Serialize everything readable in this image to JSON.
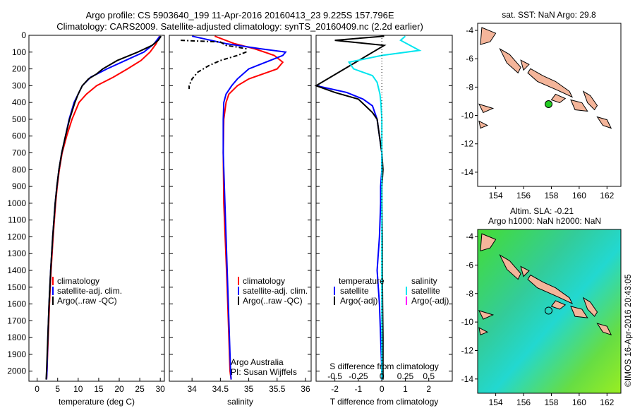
{
  "header": {
    "title_line1": "Argo profile: CS 5903640_199 11-Apr-2016 20160413_23 9.225S 157.796E",
    "title_line2": "Climatology: CARS2009. Satellite-adjusted climatology: synTS_20160409.nc (2.2d earlier)"
  },
  "colors": {
    "climatology": "#ff0000",
    "satellite": "#0000ff",
    "argo": "#000000",
    "satellite_salinity": "#00e5ee",
    "argo_salinity_adj": "#ff00ff",
    "land": "#f4b59a",
    "float_marker": "#22cc22"
  },
  "chart_data": [
    {
      "type": "line",
      "id": "temperature",
      "xlabel": "temperature (deg C)",
      "ylabel": "",
      "xlim": [
        -2,
        31
      ],
      "ylim": [
        2060,
        0
      ],
      "x_ticks": [
        0,
        5,
        10,
        15,
        20,
        25,
        30
      ],
      "y_ticks": [
        0,
        100,
        200,
        300,
        400,
        500,
        600,
        700,
        800,
        900,
        1000,
        1100,
        1200,
        1300,
        1400,
        1500,
        1600,
        1700,
        1800,
        1900,
        2000
      ],
      "legend": [
        "climatology",
        "satellite-adj. clim.",
        "Argo(..raw -QC)"
      ],
      "legend_position": "lower-center",
      "series": [
        {
          "name": "climatology",
          "depth": [
            5,
            50,
            100,
            150,
            200,
            250,
            300,
            350,
            400,
            500,
            600,
            700,
            800,
            900,
            1000,
            1200,
            1400,
            1600,
            1800,
            2000,
            2050
          ],
          "values": [
            29.8,
            29.0,
            27.5,
            25.3,
            22.0,
            18.5,
            14.5,
            12.0,
            10.2,
            8.5,
            7.2,
            6.1,
            5.4,
            4.9,
            4.5,
            3.9,
            3.4,
            3.0,
            2.7,
            2.4,
            2.3
          ]
        },
        {
          "name": "satellite-adj. clim.",
          "depth": [
            5,
            50,
            100,
            150,
            200,
            250,
            300,
            350,
            400,
            500,
            600,
            700,
            800,
            900,
            1000,
            1200,
            1400,
            1600,
            1800,
            2000,
            2050
          ],
          "values": [
            29.9,
            28.5,
            26.0,
            21.5,
            17.0,
            13.0,
            11.0,
            10.0,
            9.0,
            7.8,
            6.9,
            6.0,
            5.3,
            4.8,
            4.4,
            3.8,
            3.3,
            2.9,
            2.6,
            2.4,
            2.3
          ]
        },
        {
          "name": "Argo(..raw -QC)",
          "depth": [
            5,
            30,
            60,
            100,
            150,
            200,
            230,
            260,
            300,
            350,
            400,
            500,
            600,
            700,
            800,
            900,
            1000,
            1200,
            1400,
            1600,
            1800,
            2000,
            2050
          ],
          "values": [
            30.2,
            29.5,
            28.0,
            24.5,
            19.5,
            16.0,
            14.5,
            12.5,
            11.0,
            10.0,
            9.2,
            7.9,
            6.9,
            6.0,
            5.3,
            4.8,
            4.4,
            3.8,
            3.3,
            2.9,
            2.6,
            2.3,
            2.2
          ]
        }
      ]
    },
    {
      "type": "line",
      "id": "salinity",
      "xlabel": "salinity",
      "xlim": [
        33.6,
        36.1
      ],
      "ylim": [
        2060,
        0
      ],
      "x_ticks": [
        34,
        34.5,
        35,
        35.5,
        36
      ],
      "legend": [
        "climatology",
        "satellite-adj. clim.",
        "Argo(..raw -QC)"
      ],
      "legend_position": "lower-center",
      "annotations": [
        "Argo Australia",
        "PI: Susan Wijffels"
      ],
      "series": [
        {
          "name": "climatology",
          "depth": [
            5,
            50,
            80,
            120,
            160,
            200,
            260,
            300,
            350,
            400,
            500,
            700,
            1000,
            1500,
            2000,
            2050
          ],
          "values": [
            34.4,
            34.75,
            35.1,
            35.45,
            35.6,
            35.5,
            35.0,
            34.8,
            34.65,
            34.6,
            34.56,
            34.55,
            34.56,
            34.62,
            34.67,
            34.69
          ]
        },
        {
          "name": "satellite-adj. clim.",
          "depth": [
            5,
            50,
            80,
            100,
            120,
            160,
            200,
            260,
            300,
            350,
            400,
            500,
            700,
            1000,
            1500,
            2000,
            2050
          ],
          "values": [
            34.0,
            34.6,
            35.2,
            35.65,
            35.6,
            35.3,
            35.0,
            34.8,
            34.7,
            34.6,
            34.56,
            34.55,
            34.55,
            34.58,
            34.63,
            34.68,
            34.69
          ]
        },
        {
          "name": "Argo(..raw -QC)",
          "depth": [
            30,
            40,
            60,
            70,
            80,
            100,
            120,
            150,
            180,
            220,
            260,
            300,
            320
          ],
          "values": [
            33.8,
            34.5,
            34.6,
            34.8,
            34.95,
            34.95,
            34.8,
            34.5,
            34.3,
            34.1,
            34.0,
            33.95,
            33.95
          ]
        }
      ]
    },
    {
      "type": "line",
      "id": "difference",
      "xlabel": "T difference from climatology",
      "xlabel_top": "S difference from climatology",
      "xlim": [
        -2.8,
        3.0
      ],
      "ylim": [
        2060,
        0
      ],
      "x_ticks": [
        -2,
        -1,
        0,
        1,
        2
      ],
      "x_ticks_top": [
        -0.5,
        -0.25,
        0,
        0.25,
        0.5
      ],
      "legend_temperature": [
        "temperature",
        "satellite",
        "Argo(-adj)"
      ],
      "legend_salinity": [
        "salinity",
        "satellite",
        "Argo(-adj)"
      ],
      "series": [
        {
          "name": "satellite",
          "variable": "temperature",
          "depth": [
            300,
            340,
            380,
            420,
            460,
            500,
            600,
            700,
            800,
            900,
            1000,
            1200,
            1400,
            1600,
            1800,
            2000,
            2050
          ],
          "values": [
            -2.8,
            -1.5,
            -0.8,
            -0.4,
            -0.3,
            -0.2,
            -0.1,
            0.0,
            0.0,
            -0.05,
            -0.05,
            -0.1,
            -0.2,
            -0.1,
            -0.05,
            0.0,
            0.0
          ]
        },
        {
          "name": "Argo(-adj)",
          "variable": "temperature",
          "depth": [
            5,
            30,
            60,
            300,
            340,
            380,
            420,
            460,
            500,
            600,
            700,
            800,
            900,
            1000,
            1200,
            1400,
            1600,
            1800,
            2000,
            2050
          ],
          "values": [
            0.1,
            -2.0,
            0.1,
            -2.8,
            -2.0,
            -1.0,
            -0.7,
            -0.4,
            -0.2,
            -0.1,
            0.0,
            0.05,
            0.0,
            0.0,
            0.02,
            0.02,
            0.03,
            0.05,
            0.05,
            0.05
          ]
        },
        {
          "name": "satellite",
          "variable": "salinity",
          "depth": [
            5,
            30,
            60,
            90,
            120,
            160,
            200,
            240,
            280,
            350,
            400,
            500,
            700,
            1000,
            1500,
            2000,
            2050
          ],
          "values": [
            0.25,
            0.2,
            0.3,
            0.4,
            0.0,
            -0.35,
            -0.3,
            -0.1,
            -0.05,
            -0.02,
            -0.01,
            0.0,
            0.0,
            0.0,
            0.0,
            0.0,
            0.0
          ]
        }
      ]
    }
  ],
  "maps": {
    "sst": {
      "title": "sat. SST: NaN Argo: 29.8",
      "x_ticks": [
        "154",
        "156",
        "158",
        "160",
        "162"
      ],
      "y_ticks": [
        "-4",
        "-6",
        "-8",
        "-10",
        "-12",
        "-14"
      ],
      "x_range": [
        152.7,
        163.0
      ],
      "y_range": [
        -15.0,
        -3.5
      ],
      "float_position": [
        157.8,
        -9.2
      ]
    },
    "sla": {
      "title_line1": "Altim. SLA: -0.21",
      "title_line2": "Argo h1000: NaN h2000: NaN",
      "x_ticks": [
        "154",
        "156",
        "158",
        "160",
        "162"
      ],
      "y_ticks": [
        "-4",
        "-6",
        "-8",
        "-10",
        "-12",
        "-14"
      ],
      "x_range": [
        152.7,
        163.0
      ],
      "y_range": [
        -15.0,
        -3.5
      ],
      "float_position": [
        157.8,
        -9.2
      ]
    }
  },
  "footer": {
    "credit": "©IMOS 16-Apr-2016 20:43:05"
  }
}
